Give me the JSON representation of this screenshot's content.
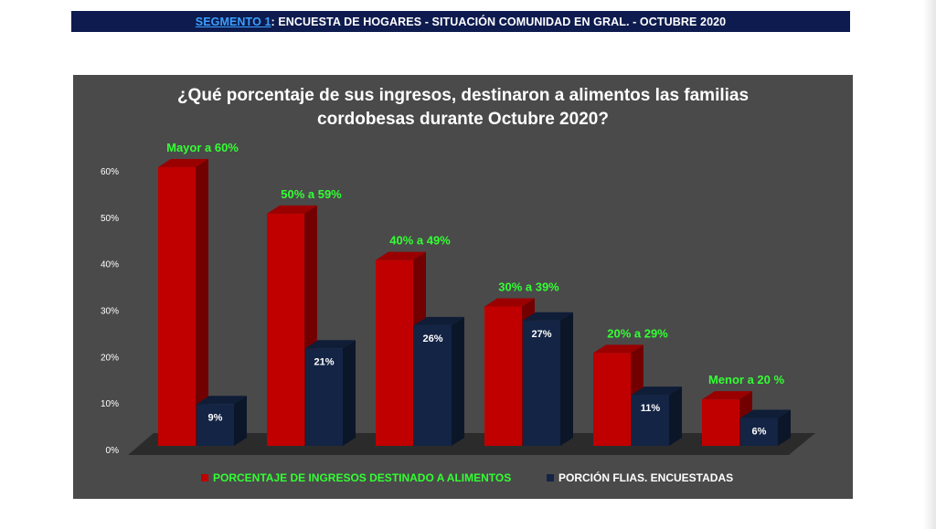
{
  "header": {
    "segment_link": "SEGMENTO 1",
    "title_rest": ": ENCUESTA DE HOGARES - SITUACIÓN COMUNIDAD EN GRAL. - OCTUBRE 2020"
  },
  "colors": {
    "banner_bg": "#0d1b4e",
    "panel_bg": "#4a4a4a",
    "red_series": "#c00000",
    "navy_series": "#132445",
    "category_label": "#33ff33"
  },
  "chart_data": {
    "type": "bar",
    "title_line1": "¿Qué porcentaje de sus ingresos, destinaron a alimentos las familias",
    "title_line2": "cordobesas durante Octubre 2020?",
    "categories": [
      "Mayor a 60%",
      "50% a 59%",
      "40% a 49%",
      "30% a 39%",
      "20% a 29%",
      "Menor a 20 %"
    ],
    "series": [
      {
        "name": "PORCENTAJE DE INGRESOS  DESTINADO A ALIMENTOS",
        "values": [
          60,
          50,
          40,
          30,
          20,
          10
        ]
      },
      {
        "name": "PORCIÓN FLIAS. ENCUESTADAS",
        "values": [
          9,
          21,
          26,
          27,
          11,
          6
        ],
        "labels": [
          "9%",
          "21%",
          "26%",
          "27%",
          "11%",
          "6%"
        ]
      }
    ],
    "yticks": [
      "0%",
      "10%",
      "20%",
      "30%",
      "40%",
      "50%",
      "60%"
    ],
    "ylim": [
      0,
      60
    ],
    "legend_position": "bottom",
    "grid": false
  }
}
